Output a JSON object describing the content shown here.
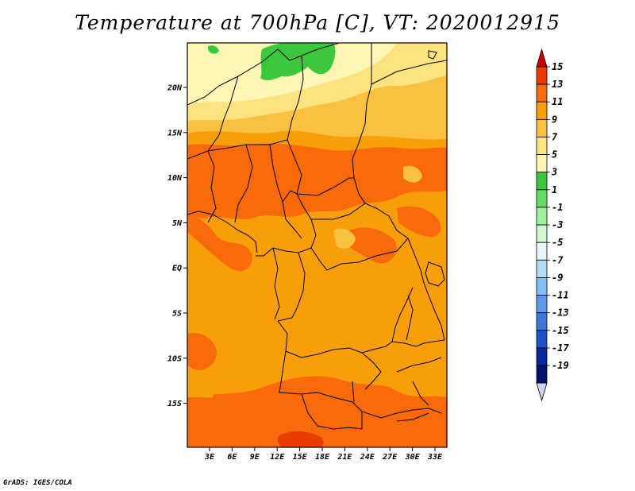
{
  "title": "Temperature at 700hPa [C], VT: 2020012915",
  "credit": "GrADS: IGES/COLA",
  "map": {
    "lat_labels": [
      "20N",
      "15N",
      "10N",
      "5N",
      "EQ",
      "5S",
      "10S",
      "15S"
    ],
    "lon_labels": [
      "3E",
      "6E",
      "9E",
      "12E",
      "15E",
      "18E",
      "21E",
      "24E",
      "27E",
      "30E",
      "33E"
    ]
  },
  "colorbar": {
    "labels": [
      "15",
      "13",
      "11",
      "9",
      "7",
      "5",
      "3",
      "1",
      "-1",
      "-3",
      "-5",
      "-7",
      "-9",
      "-11",
      "-13",
      "-15",
      "-17",
      "-19"
    ],
    "colors": [
      "#c80000",
      "#e83c00",
      "#f86a0a",
      "#f89e0a",
      "#fac040",
      "#fde380",
      "#fff5b4",
      "#3cc83c",
      "#64dc64",
      "#a0f0a0",
      "#d2f8d2",
      "#e6f5fa",
      "#b4dcf5",
      "#82bef0",
      "#5a9ae6",
      "#3c78dc",
      "#1e50c8",
      "#0a28a0",
      "#00146e",
      "#d2d2f5"
    ]
  },
  "colors": {
    "orange_base": "#f89e0a",
    "orange_dark": "#f86a0a",
    "orange_light": "#fac040",
    "yellow_pale": "#fff5b4",
    "green": "#3cc83c",
    "red": "#e83c00"
  }
}
